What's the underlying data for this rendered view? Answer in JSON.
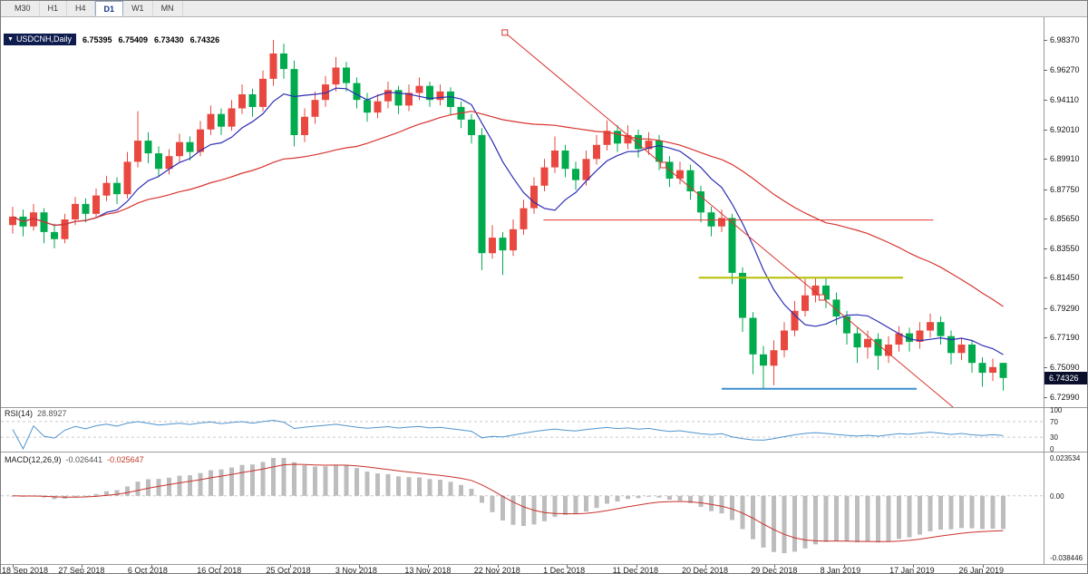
{
  "toolbar": {
    "timeframes": [
      {
        "label": "M30",
        "active": false
      },
      {
        "label": "H1",
        "active": false
      },
      {
        "label": "H4",
        "active": false
      },
      {
        "label": "D1",
        "active": true
      },
      {
        "label": "W1",
        "active": false
      },
      {
        "label": "MN",
        "active": false
      }
    ]
  },
  "chart": {
    "title": {
      "dropdown_glyph": "▼",
      "symbol": "USDCNH,Daily",
      "open": "6.75395",
      "high": "6.75409",
      "low": "6.73430",
      "close": "6.74326"
    },
    "price_axis_labels": [
      "6.98370",
      "6.96270",
      "6.94110",
      "6.92010",
      "6.89910",
      "6.87750",
      "6.85650",
      "6.83550",
      "6.81450",
      "6.79290",
      "6.77190",
      "6.75090",
      "6.72990"
    ],
    "current_price_badge": "6.74326"
  },
  "indicators": {
    "rsi": {
      "name": "RSI(14)",
      "value": "28.8927",
      "period": 14,
      "levels": [
        70,
        30
      ],
      "axis_labels": [
        "100",
        "70",
        "30",
        "0"
      ]
    },
    "macd": {
      "name": "MACD(12,26,9)",
      "value_main": "-0.026441",
      "value_signal": "-0.025647",
      "fast": 12,
      "slow": 26,
      "signal": 9,
      "axis_top": "0.023534",
      "axis_zero": "0.00",
      "axis_bottom": "-0.038446"
    }
  },
  "colors": {
    "candle_up": "#e8483f",
    "candle_down": "#00ab4e",
    "rsi_line": "#4f94cd",
    "macd_bar": "#bdbdbd",
    "macd_signal": "#c8332b",
    "badge_bg": "#0a102c",
    "symbol_box_bg": "#0e1c4e",
    "dash_line": "#c9c9c9"
  },
  "chart_data": {
    "type": "candlestick",
    "symbol": "USDCNH",
    "timeframe": "Daily",
    "price_scale": {
      "top_price": 6.9998,
      "bottom_price": 6.7225
    },
    "last_ohlc": {
      "open": 6.75395,
      "high": 6.75409,
      "low": 6.7343,
      "close": 6.74326
    },
    "candles": [
      [
        6.852,
        6.865,
        6.846,
        6.858
      ],
      [
        6.858,
        6.863,
        6.844,
        6.851
      ],
      [
        6.851,
        6.867,
        6.848,
        6.861
      ],
      [
        6.861,
        6.864,
        6.839,
        6.847
      ],
      [
        6.847,
        6.853,
        6.8355,
        6.842
      ],
      [
        6.842,
        6.86,
        6.839,
        6.856
      ],
      [
        6.856,
        6.872,
        6.852,
        6.867
      ],
      [
        6.867,
        6.871,
        6.854,
        6.86
      ],
      [
        6.86,
        6.878,
        6.857,
        6.873
      ],
      [
        6.873,
        6.887,
        6.869,
        6.882
      ],
      [
        6.882,
        6.886,
        6.867,
        6.874
      ],
      [
        6.874,
        6.904,
        6.871,
        6.897
      ],
      [
        6.897,
        6.933,
        6.893,
        6.912
      ],
      [
        6.912,
        6.918,
        6.896,
        6.903
      ],
      [
        6.903,
        6.908,
        6.886,
        6.892
      ],
      [
        6.892,
        6.906,
        6.888,
        6.901
      ],
      [
        6.901,
        6.917,
        6.897,
        6.911
      ],
      [
        6.911,
        6.915,
        6.898,
        6.904
      ],
      [
        6.904,
        6.926,
        6.901,
        6.92
      ],
      [
        6.92,
        6.937,
        6.916,
        6.931
      ],
      [
        6.931,
        6.935,
        6.916,
        6.922
      ],
      [
        6.922,
        6.941,
        6.919,
        6.935
      ],
      [
        6.935,
        6.952,
        6.931,
        6.945
      ],
      [
        6.945,
        6.949,
        6.929,
        6.936
      ],
      [
        6.936,
        6.962,
        6.933,
        6.956
      ],
      [
        6.956,
        6.9837,
        6.951,
        6.974
      ],
      [
        6.974,
        6.981,
        6.956,
        6.963
      ],
      [
        6.963,
        6.969,
        6.908,
        6.916
      ],
      [
        6.916,
        6.935,
        6.911,
        6.929
      ],
      [
        6.929,
        6.947,
        6.924,
        6.941
      ],
      [
        6.941,
        6.958,
        6.936,
        6.952
      ],
      [
        6.952,
        6.9715,
        6.947,
        6.964
      ],
      [
        6.964,
        6.968,
        6.947,
        6.953
      ],
      [
        6.953,
        6.957,
        6.935,
        6.941
      ],
      [
        6.941,
        6.946,
        6.9255,
        6.932
      ],
      [
        6.932,
        6.945,
        6.928,
        6.94
      ],
      [
        6.94,
        6.954,
        6.935,
        6.948
      ],
      [
        6.948,
        6.951,
        6.931,
        6.937
      ],
      [
        6.937,
        6.952,
        6.933,
        6.946
      ],
      [
        6.946,
        6.957,
        6.941,
        6.951
      ],
      [
        6.951,
        6.954,
        6.936,
        6.941
      ],
      [
        6.941,
        6.952,
        6.937,
        6.947
      ],
      [
        6.947,
        6.95,
        6.93,
        6.936
      ],
      [
        6.936,
        6.94,
        6.921,
        6.927
      ],
      [
        6.927,
        6.931,
        6.91,
        6.916
      ],
      [
        6.916,
        6.921,
        6.82,
        6.832
      ],
      [
        6.832,
        6.852,
        6.828,
        6.843
      ],
      [
        6.843,
        6.847,
        6.8165,
        6.834
      ],
      [
        6.834,
        6.856,
        6.83,
        6.849
      ],
      [
        6.849,
        6.87,
        6.845,
        6.864
      ],
      [
        6.864,
        6.886,
        6.86,
        6.88
      ],
      [
        6.88,
        6.899,
        6.876,
        6.893
      ],
      [
        6.893,
        6.915,
        6.889,
        6.905
      ],
      [
        6.905,
        6.909,
        6.886,
        6.892
      ],
      [
        6.892,
        6.897,
        6.877,
        6.884
      ],
      [
        6.884,
        6.905,
        6.88,
        6.899
      ],
      [
        6.899,
        6.916,
        6.895,
        6.909
      ],
      [
        6.909,
        6.9265,
        6.905,
        6.919
      ],
      [
        6.919,
        6.923,
        6.904,
        6.91
      ],
      [
        6.91,
        6.923,
        6.906,
        6.916
      ],
      [
        6.916,
        6.92,
        6.9,
        6.906
      ],
      [
        6.906,
        6.918,
        6.902,
        6.912
      ],
      [
        6.912,
        6.916,
        6.891,
        6.897
      ],
      [
        6.897,
        6.901,
        6.879,
        6.885
      ],
      [
        6.885,
        6.897,
        6.881,
        6.891
      ],
      [
        6.891,
        6.895,
        6.87,
        6.876
      ],
      [
        6.876,
        6.88,
        6.854,
        6.861
      ],
      [
        6.861,
        6.865,
        6.844,
        6.851
      ],
      [
        6.851,
        6.863,
        6.847,
        6.857
      ],
      [
        6.857,
        6.86,
        6.81,
        6.818
      ],
      [
        6.818,
        6.822,
        6.776,
        6.786
      ],
      [
        6.786,
        6.79,
        6.746,
        6.76
      ],
      [
        6.76,
        6.766,
        6.7358,
        6.752
      ],
      [
        6.752,
        6.77,
        6.738,
        6.763
      ],
      [
        6.763,
        6.783,
        6.758,
        6.777
      ],
      [
        6.777,
        6.798,
        6.773,
        6.791
      ],
      [
        6.791,
        6.8138,
        6.787,
        6.802
      ],
      [
        6.802,
        6.8146,
        6.797,
        6.809
      ],
      [
        6.809,
        6.814,
        6.793,
        6.799
      ],
      [
        6.799,
        6.804,
        6.781,
        6.787
      ],
      [
        6.787,
        6.791,
        6.767,
        6.775
      ],
      [
        6.775,
        6.779,
        6.754,
        6.765
      ],
      [
        6.765,
        6.777,
        6.757,
        6.771
      ],
      [
        6.771,
        6.775,
        6.749,
        6.759
      ],
      [
        6.759,
        6.773,
        6.754,
        6.767
      ],
      [
        6.767,
        6.78,
        6.762,
        6.775
      ],
      [
        6.775,
        6.779,
        6.762,
        6.769
      ],
      [
        6.769,
        6.783,
        6.764,
        6.777
      ],
      [
        6.777,
        6.789,
        6.772,
        6.783
      ],
      [
        6.783,
        6.787,
        6.767,
        6.773
      ],
      [
        6.773,
        6.777,
        6.753,
        6.761
      ],
      [
        6.761,
        6.772,
        6.756,
        6.767
      ],
      [
        6.767,
        6.77,
        6.747,
        6.754
      ],
      [
        6.754,
        6.758,
        6.737,
        6.747
      ],
      [
        6.747,
        6.757,
        6.741,
        6.751
      ],
      [
        6.75395,
        6.75409,
        6.7343,
        6.74326
      ]
    ],
    "moving_averages": [
      {
        "name": "ma-fast",
        "period": 8,
        "color": "#2d2db4"
      },
      {
        "name": "ma-slow",
        "period": 34,
        "color": "#d8342e"
      }
    ],
    "objects": {
      "trendline": {
        "i1": 47.2,
        "price1": 6.9889,
        "i2": 77.6,
        "price2": 6.8005,
        "ray": true,
        "color": "#d8342e",
        "selected": true
      },
      "hlines": [
        {
          "name": "resistance-line-red",
          "price": 6.8556,
          "i1": 50.9,
          "i2": 88.3,
          "color": "#e53530",
          "width": 1
        },
        {
          "name": "resistance-line-yellow",
          "price": 6.8145,
          "i1": 65.8,
          "i2": 85.4,
          "color": "#b4bd00",
          "width": 2
        },
        {
          "name": "support-line-blue",
          "price": 6.7355,
          "i1": 68.0,
          "i2": 86.7,
          "color": "#3f8fce",
          "width": 2
        }
      ]
    },
    "rsi_current": 28.8927,
    "macd_current": {
      "main": -0.026441,
      "signal": -0.025647
    },
    "macd_scale": {
      "max": 0.023534,
      "min": -0.038446
    },
    "time_labels": [
      {
        "text": "18 Sep 2018",
        "index": 0
      },
      {
        "text": "27 Sep 2018",
        "index": 6.64
      },
      {
        "text": "6 Oct 2018",
        "index": 13.29
      },
      {
        "text": "16 Oct 2018",
        "index": 19.93
      },
      {
        "text": "25 Oct 2018",
        "index": 26.57
      },
      {
        "text": "3 Nov 2018",
        "index": 33.21
      },
      {
        "text": "13 Nov 2018",
        "index": 39.86
      },
      {
        "text": "22 Nov 2018",
        "index": 46.5
      },
      {
        "text": "1 Dec 2018",
        "index": 53.14
      },
      {
        "text": "11 Dec 2018",
        "index": 59.79
      },
      {
        "text": "20 Dec 2018",
        "index": 66.43
      },
      {
        "text": "29 Dec 2018",
        "index": 73.07
      },
      {
        "text": "8 Jan 2019",
        "index": 79.71
      },
      {
        "text": "17 Jan 2019",
        "index": 86.36
      },
      {
        "text": "26 Jan 2019",
        "index": 93
      }
    ]
  }
}
